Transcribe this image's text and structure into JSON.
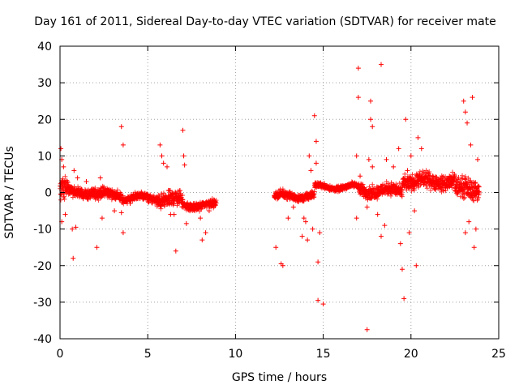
{
  "chart_data": {
    "type": "scatter",
    "title": "Day 161 of 2011, Sidereal Day-to-day VTEC variation (SDTVAR) for receiver mate",
    "xlabel": "GPS time / hours",
    "ylabel": "SDTVAR / TECUs",
    "xlim": [
      0,
      25
    ],
    "ylim": [
      -40,
      40
    ],
    "xticks": [
      0,
      5,
      10,
      15,
      20,
      25
    ],
    "yticks": [
      -40,
      -30,
      -20,
      -10,
      0,
      10,
      20,
      30,
      40
    ],
    "grid": true,
    "marker": "+",
    "color": "#ff0000",
    "series": [
      {
        "name": "SDTVAR",
        "dense_band": [
          {
            "x": [
              0.0,
              0.5
            ],
            "center": 1.0,
            "spread": 4.0
          },
          {
            "x": [
              0.5,
              2.0
            ],
            "center": 0.0,
            "spread": 2.0
          },
          {
            "x": [
              2.0,
              3.5
            ],
            "center": -0.5,
            "spread": 2.0
          },
          {
            "x": [
              3.5,
              5.5
            ],
            "center": -1.5,
            "spread": 1.5
          },
          {
            "x": [
              5.5,
              7.0
            ],
            "center": -2.0,
            "spread": 3.0
          },
          {
            "x": [
              7.0,
              8.9
            ],
            "center": -3.5,
            "spread": 1.5
          },
          {
            "x": [
              12.2,
              14.5
            ],
            "center": -1.0,
            "spread": 1.5
          },
          {
            "x": [
              14.5,
              17.0
            ],
            "center": 1.5,
            "spread": 1.0
          },
          {
            "x": [
              17.0,
              19.5
            ],
            "center": 0.5,
            "spread": 2.5
          },
          {
            "x": [
              19.5,
              22.5
            ],
            "center": 3.0,
            "spread": 3.0
          },
          {
            "x": [
              22.5,
              23.9
            ],
            "center": 1.0,
            "spread": 4.0
          }
        ],
        "outliers": [
          [
            0.05,
            12
          ],
          [
            0.1,
            9
          ],
          [
            0.2,
            7
          ],
          [
            0.1,
            -8
          ],
          [
            0.3,
            -6
          ],
          [
            0.8,
            6
          ],
          [
            0.7,
            -10
          ],
          [
            0.75,
            -18
          ],
          [
            0.9,
            -9.5
          ],
          [
            1.0,
            4
          ],
          [
            1.5,
            3
          ],
          [
            2.1,
            -15
          ],
          [
            2.3,
            4
          ],
          [
            2.4,
            -7
          ],
          [
            3.1,
            -5
          ],
          [
            3.5,
            18
          ],
          [
            3.6,
            13
          ],
          [
            3.6,
            -11
          ],
          [
            3.5,
            -5.5
          ],
          [
            4.0,
            -3
          ],
          [
            5.7,
            13
          ],
          [
            5.8,
            10
          ],
          [
            5.9,
            8
          ],
          [
            6.1,
            7
          ],
          [
            6.3,
            -6
          ],
          [
            6.5,
            -6
          ],
          [
            6.6,
            -16
          ],
          [
            7.0,
            17
          ],
          [
            7.05,
            10
          ],
          [
            7.1,
            7.5
          ],
          [
            7.2,
            -8.5
          ],
          [
            7.4,
            -5
          ],
          [
            8.0,
            -7
          ],
          [
            8.1,
            -13
          ],
          [
            8.3,
            -11
          ],
          [
            8.5,
            -5
          ],
          [
            12.3,
            -15
          ],
          [
            12.6,
            -19.5
          ],
          [
            12.7,
            -20
          ],
          [
            13.0,
            -7
          ],
          [
            13.3,
            -4
          ],
          [
            13.8,
            -12
          ],
          [
            13.9,
            -7
          ],
          [
            14.0,
            -8
          ],
          [
            14.1,
            -13
          ],
          [
            14.2,
            10
          ],
          [
            14.3,
            6
          ],
          [
            14.4,
            -10
          ],
          [
            14.5,
            21
          ],
          [
            14.6,
            14
          ],
          [
            14.6,
            8
          ],
          [
            14.7,
            -19
          ],
          [
            14.7,
            -29.5
          ],
          [
            14.8,
            -11
          ],
          [
            15.0,
            -30.5
          ],
          [
            16.9,
            10
          ],
          [
            16.9,
            -7
          ],
          [
            17.0,
            34
          ],
          [
            17.0,
            26
          ],
          [
            17.1,
            4.5
          ],
          [
            17.5,
            -4
          ],
          [
            17.5,
            -37.5
          ],
          [
            17.6,
            9
          ],
          [
            17.7,
            25
          ],
          [
            17.7,
            20
          ],
          [
            17.8,
            18
          ],
          [
            17.8,
            7
          ],
          [
            18.1,
            -6
          ],
          [
            18.3,
            35
          ],
          [
            18.3,
            -12
          ],
          [
            18.5,
            -9
          ],
          [
            18.6,
            9
          ],
          [
            19.0,
            7
          ],
          [
            19.3,
            12
          ],
          [
            19.4,
            -14
          ],
          [
            19.5,
            -21
          ],
          [
            19.6,
            -29
          ],
          [
            19.7,
            20
          ],
          [
            19.8,
            6
          ],
          [
            19.9,
            -11
          ],
          [
            20.0,
            10
          ],
          [
            20.2,
            -5
          ],
          [
            20.3,
            -20
          ],
          [
            20.4,
            15
          ],
          [
            20.6,
            12
          ],
          [
            23.0,
            25
          ],
          [
            23.1,
            22
          ],
          [
            23.2,
            19
          ],
          [
            23.1,
            -11
          ],
          [
            23.3,
            -8
          ],
          [
            23.4,
            13
          ],
          [
            23.5,
            26
          ],
          [
            23.6,
            -15
          ],
          [
            23.7,
            -10
          ],
          [
            23.8,
            9
          ]
        ]
      }
    ]
  }
}
